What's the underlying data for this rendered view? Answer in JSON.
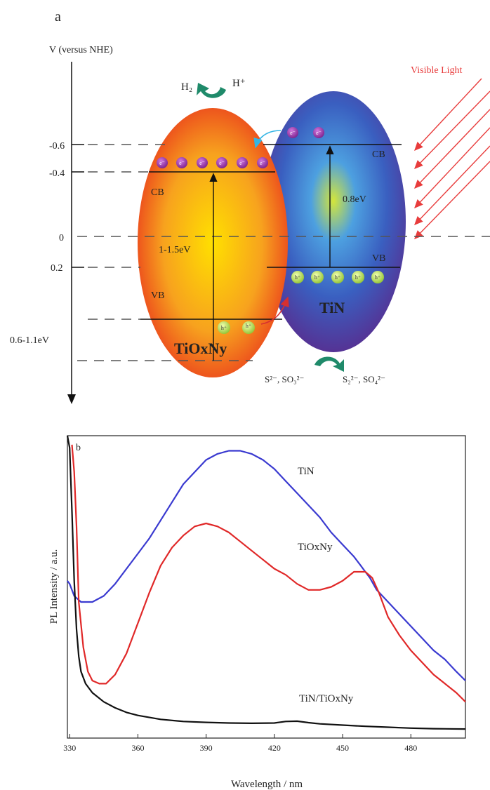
{
  "panel_a": {
    "label": "a",
    "axis_label": "V (versus NHE)",
    "levels": [
      {
        "value": "-0.6"
      },
      {
        "value": "-0.4"
      },
      {
        "value": "0"
      },
      {
        "value": "0.2"
      },
      {
        "value": "0.6-1.1eV"
      }
    ],
    "light_label": "Visible Light",
    "h2_label": "H₂",
    "hplus_label": "H⁺",
    "tiox": {
      "name": "TiOxNy",
      "cb": "CB",
      "vb": "VB",
      "gap": "1-1.5eV"
    },
    "tin": {
      "name": "TiN",
      "cb": "CB",
      "vb": "VB",
      "gap": "0.8eV"
    },
    "electron_symbol": "e⁻",
    "hole_symbol": "h⁺",
    "reactant_label": "S²⁻, SO₃²⁻",
    "product_label": "S₂²⁻, SO₄²⁻",
    "colors": {
      "electron": "#8e2a9e",
      "hole": "#b6d94a",
      "green_arrow": "#1f8a6a",
      "light_arrow": "#e83c3c",
      "cyan_arrow": "#33b5e5",
      "red_arrow": "#d63030"
    }
  },
  "panel_b": {
    "label": "b",
    "chart_data": {
      "type": "line",
      "xlabel": "Wavelength / nm",
      "ylabel": "PL Intensity / a.u.",
      "xlim": [
        329,
        504
      ],
      "ylim": [
        0,
        100
      ],
      "x_ticks": [
        330,
        360,
        390,
        420,
        450,
        480
      ],
      "series": [
        {
          "name": "TiN",
          "color": "#3a3ad0",
          "x": [
            329,
            330,
            332,
            335,
            340,
            345,
            350,
            355,
            360,
            365,
            370,
            375,
            380,
            385,
            390,
            395,
            400,
            405,
            410,
            415,
            420,
            425,
            430,
            435,
            440,
            445,
            450,
            455,
            458,
            460,
            462,
            465,
            470,
            475,
            480,
            485,
            490,
            495,
            500,
            504
          ],
          "y": [
            52,
            51,
            47,
            45,
            45,
            47,
            51,
            56,
            61,
            66,
            72,
            78,
            84,
            88,
            92,
            94,
            95,
            95,
            94,
            92,
            89,
            85,
            81,
            77,
            73,
            68,
            64,
            60,
            57,
            55,
            53,
            49,
            45,
            41,
            37,
            33,
            29,
            26,
            22,
            19
          ]
        },
        {
          "name": "TiOxNy",
          "color": "#e02828",
          "x": [
            331,
            332,
            333,
            334,
            336,
            338,
            340,
            343,
            346,
            350,
            355,
            360,
            365,
            370,
            375,
            380,
            385,
            390,
            395,
            400,
            405,
            410,
            415,
            420,
            425,
            430,
            435,
            440,
            445,
            450,
            455,
            460,
            463,
            466,
            470,
            475,
            480,
            485,
            490,
            495,
            500,
            504
          ],
          "y": [
            97,
            88,
            70,
            45,
            30,
            22,
            19,
            18,
            18,
            21,
            28,
            38,
            48,
            57,
            63,
            67,
            70,
            71,
            70,
            68,
            65,
            62,
            59,
            56,
            54,
            51,
            49,
            49,
            50,
            52,
            55,
            55,
            53,
            48,
            40,
            34,
            29,
            25,
            21,
            18,
            15,
            12
          ]
        },
        {
          "name": "TiN/TiOxNy",
          "color": "#111111",
          "x": [
            329,
            330,
            331,
            332,
            333,
            334,
            335,
            337,
            340,
            345,
            350,
            355,
            360,
            370,
            380,
            390,
            400,
            410,
            420,
            425,
            430,
            435,
            440,
            450,
            460,
            470,
            480,
            490,
            504
          ],
          "y": [
            100,
            96,
            75,
            52,
            36,
            27,
            22,
            18,
            15,
            12,
            10,
            8.5,
            7.5,
            6.2,
            5.5,
            5.2,
            5.0,
            4.9,
            5.0,
            5.5,
            5.6,
            5.1,
            4.7,
            4.3,
            3.9,
            3.6,
            3.3,
            3.1,
            3.0
          ]
        }
      ]
    }
  }
}
